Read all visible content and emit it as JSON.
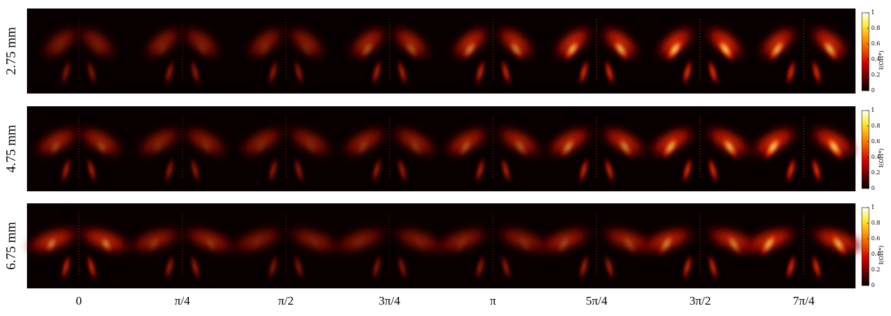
{
  "rows": [
    {
      "label": "2.75 mm"
    },
    {
      "label": "4.75 mm"
    },
    {
      "label": "6.75 mm"
    }
  ],
  "columns": [
    "0",
    "π/4",
    "π/2",
    "3π/4",
    "π",
    "5π/4",
    "3π/2",
    "7π/4"
  ],
  "colorbar": {
    "label": "I(OH*)",
    "ticks": [
      0,
      0.2,
      0.4,
      0.6,
      0.8,
      1
    ]
  }
}
